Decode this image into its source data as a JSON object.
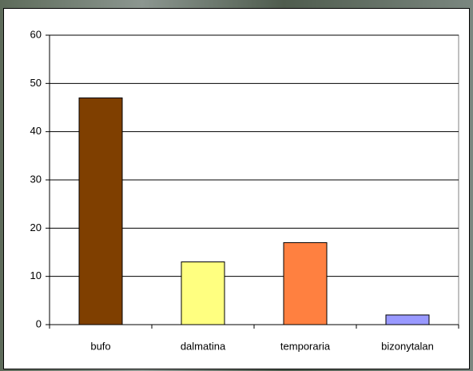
{
  "chart_data": {
    "type": "bar",
    "categories": [
      "bufo",
      "dalmatina",
      "temporaria",
      "bizonytalan"
    ],
    "values": [
      47,
      13,
      17,
      2
    ],
    "colors": [
      "#7f3f00",
      "#ffff80",
      "#ff8040",
      "#9999ff"
    ],
    "ylim": [
      0,
      60
    ],
    "yticks": [
      0,
      10,
      20,
      30,
      40,
      50,
      60
    ],
    "grid": true
  }
}
